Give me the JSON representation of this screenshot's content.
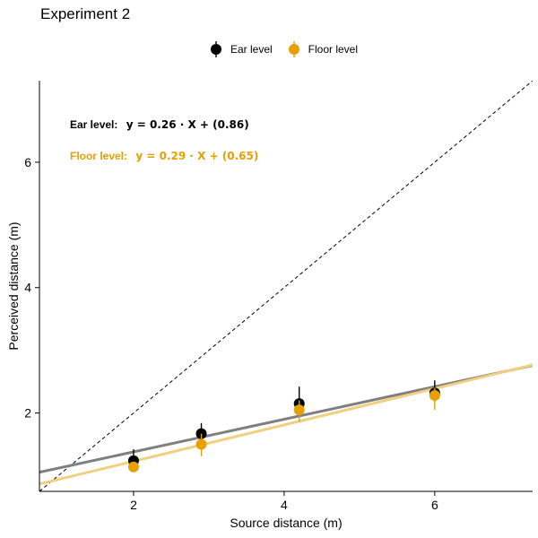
{
  "chart_data": {
    "type": "scatter",
    "title": "Experiment 2",
    "xlabel": "Source distance (m)",
    "ylabel": "Perceived distance (m)",
    "xlim": [
      0.75,
      7.3
    ],
    "ylim": [
      0.75,
      7.3
    ],
    "xticks": [
      2,
      4,
      6
    ],
    "yticks": [
      2,
      4,
      6
    ],
    "legend_position": "top",
    "reference_line": {
      "style": "dashed",
      "slope": 1,
      "intercept": 0
    },
    "series": [
      {
        "name": "Ear level",
        "color": "#000000",
        "fit_color": "#7f7f7f",
        "equation_label": "Ear level:",
        "equation": "y = 0.26 · X + (0.86)",
        "fit": {
          "slope": 0.26,
          "intercept": 0.86
        },
        "points": [
          {
            "x": 2.0,
            "y": 1.24,
            "err_low": 1.14,
            "err_high": 1.42
          },
          {
            "x": 2.9,
            "y": 1.67,
            "err_low": 1.53,
            "err_high": 1.84
          },
          {
            "x": 4.2,
            "y": 2.15,
            "err_low": 2.0,
            "err_high": 2.42
          },
          {
            "x": 6.0,
            "y": 2.32,
            "err_low": 2.18,
            "err_high": 2.52
          }
        ]
      },
      {
        "name": "Floor level",
        "color": "#e6a000",
        "fit_color": "#f0cf7f",
        "equation_label": "Floor level:",
        "equation": "y = 0.29 · X + (0.65)",
        "fit": {
          "slope": 0.29,
          "intercept": 0.65
        },
        "points": [
          {
            "x": 2.0,
            "y": 1.14,
            "err_low": 1.06,
            "err_high": 1.22
          },
          {
            "x": 2.9,
            "y": 1.5,
            "err_low": 1.31,
            "err_high": 1.67
          },
          {
            "x": 4.2,
            "y": 2.05,
            "err_low": 1.86,
            "err_high": 2.2
          },
          {
            "x": 6.0,
            "y": 2.28,
            "err_low": 2.05,
            "err_high": 2.4
          }
        ]
      }
    ]
  }
}
